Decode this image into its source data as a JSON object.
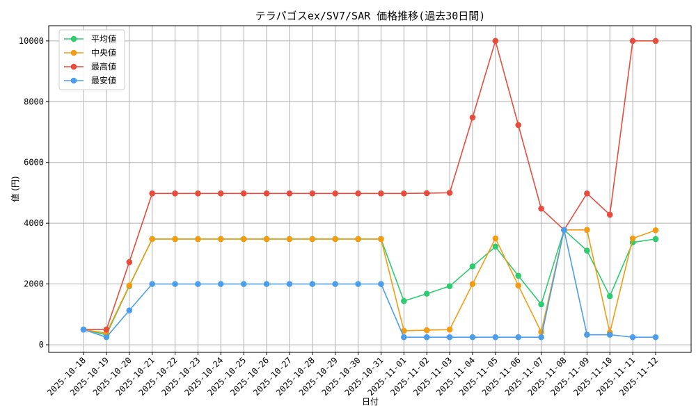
{
  "chart_data": {
    "type": "line",
    "title": "テラパゴスex/SV7/SAR 価格推移(過去30日間)",
    "xlabel": "日付",
    "ylabel": "値 (円)",
    "x": [
      "2025-10-18",
      "2025-10-19",
      "2025-10-20",
      "2025-10-21",
      "2025-10-22",
      "2025-10-23",
      "2025-10-24",
      "2025-10-25",
      "2025-10-26",
      "2025-10-27",
      "2025-10-28",
      "2025-10-29",
      "2025-10-30",
      "2025-10-31",
      "2025-11-01",
      "2025-11-02",
      "2025-11-03",
      "2025-11-04",
      "2025-11-05",
      "2025-11-06",
      "2025-11-07",
      "2025-11-08",
      "2025-11-09",
      "2025-11-10",
      "2025-11-11",
      "2025-11-12"
    ],
    "ylim": [
      -250,
      10500
    ],
    "yticks": [
      0,
      2000,
      4000,
      6000,
      8000,
      10000
    ],
    "grid": true,
    "legend_position": "top-left",
    "series": [
      {
        "name": "平均値",
        "color": "#2ecc71",
        "values": [
          500,
          330,
          1930,
          3480,
          3480,
          3480,
          3480,
          3480,
          3480,
          3480,
          3480,
          3480,
          3480,
          3480,
          1440,
          1680,
          1930,
          2580,
          3230,
          2270,
          1330,
          3780,
          3100,
          1600,
          3370,
          3480
        ]
      },
      {
        "name": "中央値",
        "color": "#f39c12",
        "values": [
          500,
          380,
          1950,
          3480,
          3480,
          3480,
          3480,
          3480,
          3480,
          3480,
          3480,
          3480,
          3480,
          3480,
          460,
          480,
          500,
          2000,
          3500,
          1950,
          420,
          3780,
          3780,
          400,
          3500,
          3770
        ]
      },
      {
        "name": "最高値",
        "color": "#e74c3c",
        "values": [
          500,
          500,
          2720,
          4980,
          4980,
          4980,
          4980,
          4980,
          4980,
          4980,
          4980,
          4980,
          4980,
          4980,
          4980,
          4990,
          5000,
          7480,
          10000,
          7230,
          4480,
          3780,
          4980,
          4280,
          10000,
          10000
        ]
      },
      {
        "name": "最安値",
        "color": "#4a9eec",
        "values": [
          500,
          250,
          1130,
          2000,
          2000,
          2000,
          2000,
          2000,
          2000,
          2000,
          2000,
          2000,
          2000,
          2000,
          250,
          250,
          250,
          250,
          250,
          250,
          250,
          3780,
          330,
          330,
          250,
          250
        ]
      }
    ]
  }
}
